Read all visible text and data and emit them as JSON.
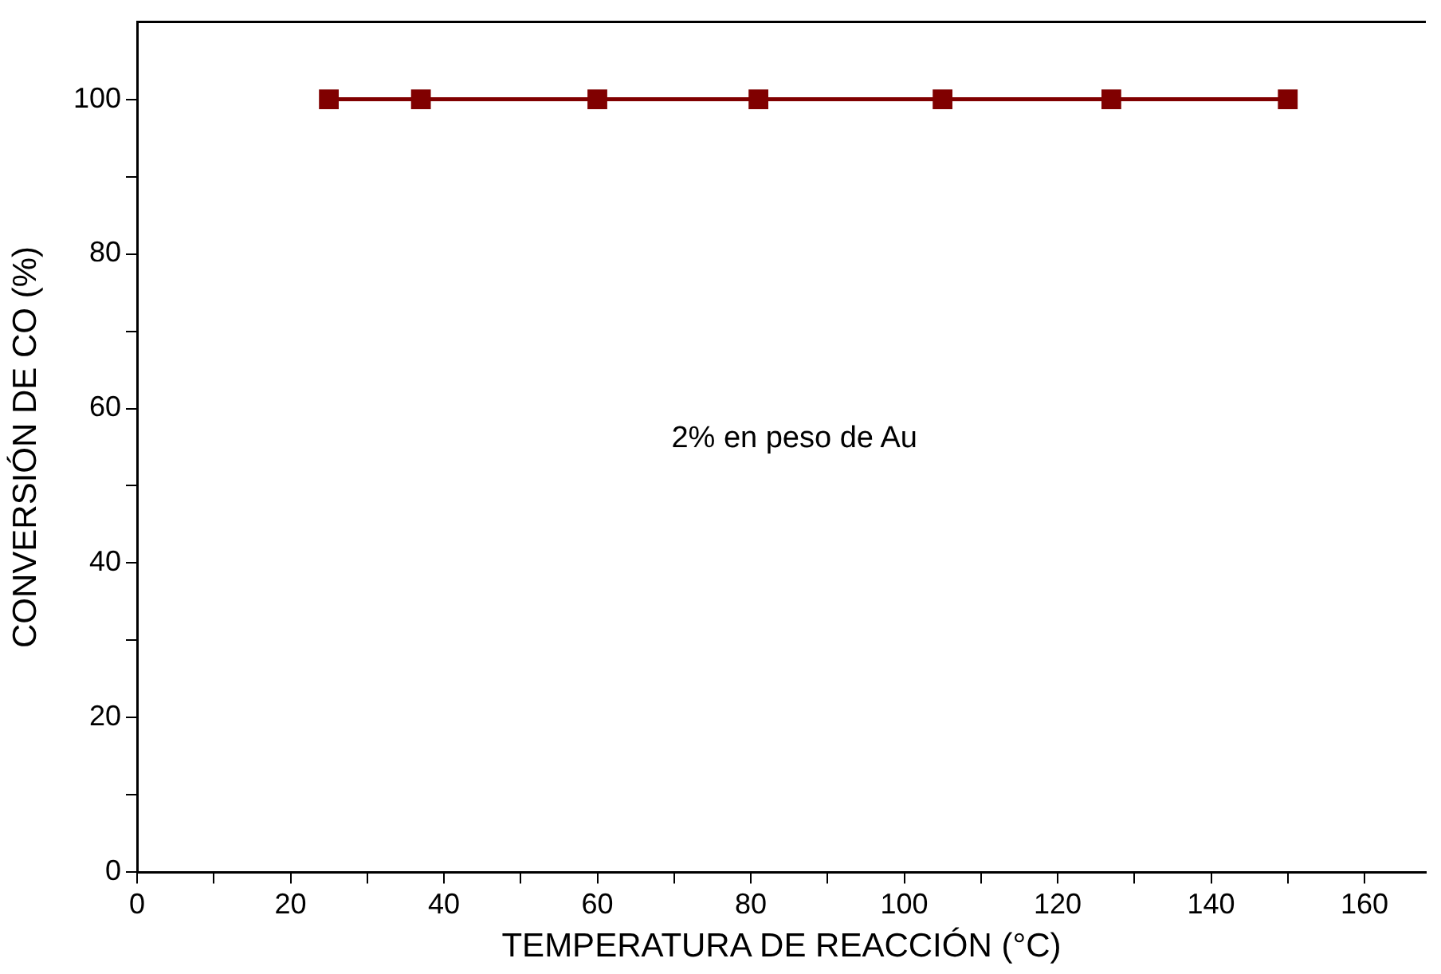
{
  "chart_data": {
    "type": "line",
    "xlabel": "TEMPERATURA DE REACCIÓN (°C)",
    "ylabel": "CONVERSIÓN DE CO (%)",
    "x": [
      25,
      37,
      60,
      81,
      105,
      127,
      150
    ],
    "series": [
      {
        "color": "#800000",
        "values": [
          100,
          100,
          100,
          100,
          100,
          100,
          100
        ]
      }
    ],
    "xlim": [
      0,
      168
    ],
    "xticks": [
      0,
      {
        "value": 10,
        "label": null
      },
      20,
      {
        "value": 30,
        "label": null
      },
      40,
      {
        "value": 50,
        "label": null
      },
      60,
      {
        "value": 70,
        "label": null
      },
      80,
      {
        "value": 90,
        "label": null
      },
      100,
      {
        "value": 110,
        "label": null
      },
      120,
      {
        "value": 130,
        "label": null
      },
      140,
      {
        "value": 150,
        "label": null
      },
      160
    ],
    "ylim": [
      0,
      110
    ],
    "yticks": [
      0,
      {
        "value": 10,
        "label": null
      },
      20,
      {
        "value": 30,
        "label": null
      },
      40,
      {
        "value": 50,
        "label": null
      },
      60,
      {
        "value": 70,
        "label": null
      },
      80,
      {
        "value": 90,
        "label": null
      },
      100
    ],
    "annotations": [
      "2% en peso de Au"
    ],
    "marker": "square",
    "line_style": "solid",
    "grid": false,
    "legend": false
  }
}
